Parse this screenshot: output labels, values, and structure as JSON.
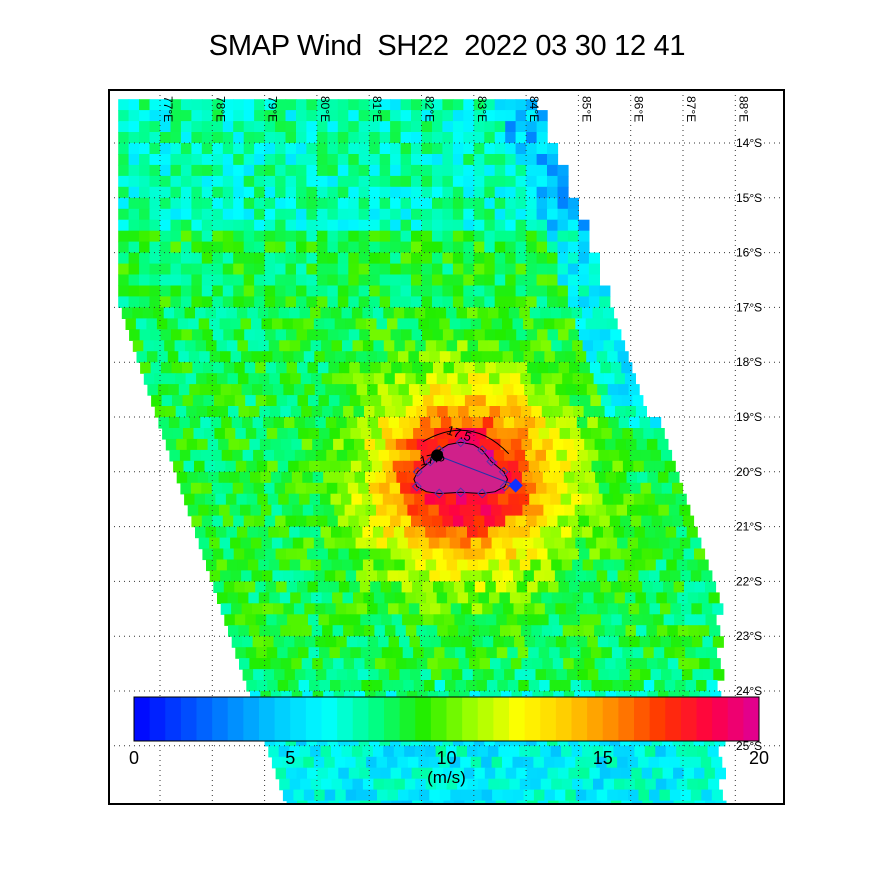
{
  "title": "SMAP Wind  SH22  2022 03 30 12 41",
  "map": {
    "lon_labels": [
      "77°E",
      "78°E",
      "79°E",
      "80°E",
      "81°E",
      "82°E",
      "83°E",
      "84°E",
      "85°E",
      "86°E",
      "87°E",
      "88°E"
    ],
    "lat_labels": [
      "14°S",
      "15°S",
      "16°S",
      "17°S",
      "18°S",
      "19°S",
      "20°S",
      "21°S",
      "22°S",
      "23°S",
      "24°S",
      "25°S"
    ],
    "storm_center": {
      "lon": 82.3,
      "lat": -19.7
    },
    "forecast_point": {
      "lon": 83.8,
      "lat": -20.25
    },
    "contour_value": "17.5",
    "contour_labels": [
      "17.5",
      "17.5"
    ]
  },
  "colorbar": {
    "ticks": [
      "0",
      "5",
      "10",
      "15",
      "20"
    ],
    "units": "(m/s)",
    "range": [
      0,
      20
    ],
    "colors": [
      "#0000ff",
      "#0044ff",
      "#0088ff",
      "#00ccff",
      "#00ffff",
      "#00ff88",
      "#22ee00",
      "#99ff00",
      "#ffff00",
      "#ffcc00",
      "#ff8800",
      "#ff3300",
      "#ff0044",
      "#dd0099"
    ]
  }
}
